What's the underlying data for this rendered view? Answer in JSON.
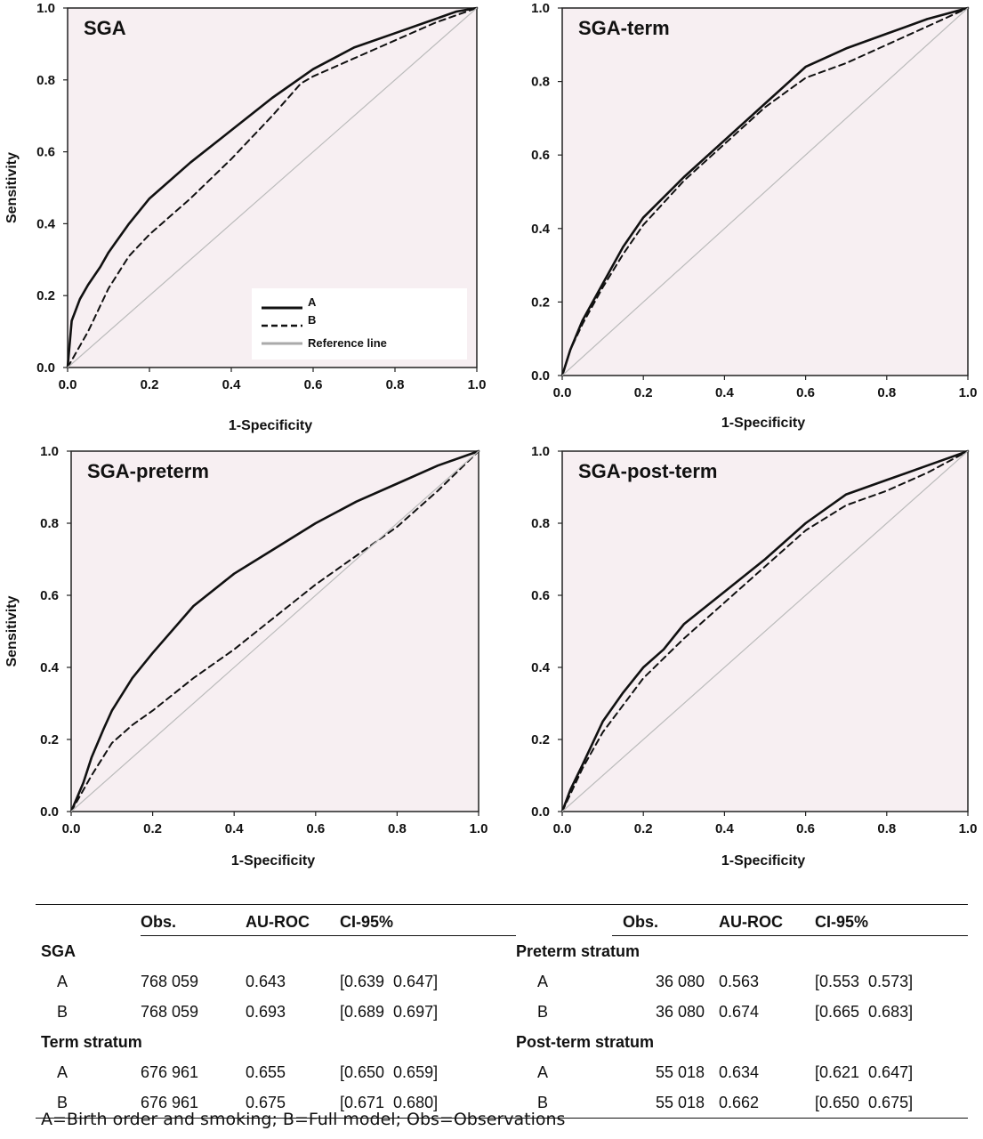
{
  "panels": [
    {
      "title": "SGA",
      "xlabel": "1-Specificity",
      "ylabel": "Sensitivity",
      "legend": [
        {
          "label": "A",
          "style": "solid"
        },
        {
          "label": "B",
          "style": "dashed"
        },
        {
          "label": "Reference line",
          "style": "reference"
        }
      ]
    },
    {
      "title": "SGA-term",
      "xlabel": "1-Specificity",
      "ylabel": ""
    },
    {
      "title": "SGA-preterm",
      "xlabel": "1-Specificity",
      "ylabel": "Sensitivity"
    },
    {
      "title": "SGA-post-term",
      "xlabel": "1-Specificity",
      "ylabel": ""
    }
  ],
  "chart_data": [
    {
      "type": "line",
      "title": "SGA",
      "xlabel": "1-Specificity",
      "ylabel": "Sensitivity",
      "xlim": [
        0,
        1
      ],
      "ylim": [
        0,
        1
      ],
      "xticks": [
        "0.0",
        "0.2",
        "0.4",
        "0.6",
        "0.8",
        "1.0"
      ],
      "yticks": [
        "0.0",
        "0.2",
        "0.4",
        "0.6",
        "0.8",
        "1.0"
      ],
      "legend_position": "bottom-right",
      "series": [
        {
          "name": "A",
          "style": "solid",
          "x": [
            0,
            0.01,
            0.03,
            0.05,
            0.08,
            0.1,
            0.15,
            0.2,
            0.3,
            0.4,
            0.5,
            0.6,
            0.7,
            0.8,
            0.9,
            0.95,
            1.0
          ],
          "y": [
            0,
            0.13,
            0.19,
            0.23,
            0.28,
            0.32,
            0.4,
            0.47,
            0.57,
            0.66,
            0.75,
            0.83,
            0.89,
            0.93,
            0.97,
            0.99,
            1.0
          ]
        },
        {
          "name": "B",
          "style": "dashed",
          "x": [
            0,
            0.05,
            0.1,
            0.15,
            0.2,
            0.3,
            0.4,
            0.5,
            0.57,
            0.6,
            0.7,
            0.8,
            0.9,
            1.0
          ],
          "y": [
            0,
            0.1,
            0.22,
            0.31,
            0.37,
            0.47,
            0.58,
            0.7,
            0.79,
            0.81,
            0.86,
            0.91,
            0.96,
            1.0
          ]
        },
        {
          "name": "Reference line",
          "style": "reference",
          "x": [
            0,
            1
          ],
          "y": [
            0,
            1
          ]
        }
      ]
    },
    {
      "type": "line",
      "title": "SGA-term",
      "xlabel": "1-Specificity",
      "ylabel": "",
      "xlim": [
        0,
        1
      ],
      "ylim": [
        0,
        1
      ],
      "xticks": [
        "0.0",
        "0.2",
        "0.4",
        "0.6",
        "0.8",
        "1.0"
      ],
      "yticks": [
        "0.0",
        "0.2",
        "0.4",
        "0.6",
        "0.8",
        "1.0"
      ],
      "series": [
        {
          "name": "A",
          "style": "solid",
          "x": [
            0,
            0.02,
            0.05,
            0.1,
            0.15,
            0.2,
            0.3,
            0.4,
            0.5,
            0.6,
            0.7,
            0.8,
            0.9,
            1.0
          ],
          "y": [
            0,
            0.07,
            0.15,
            0.25,
            0.35,
            0.43,
            0.54,
            0.64,
            0.74,
            0.84,
            0.89,
            0.93,
            0.97,
            1.0
          ]
        },
        {
          "name": "B",
          "style": "dashed",
          "x": [
            0,
            0.02,
            0.05,
            0.1,
            0.15,
            0.2,
            0.3,
            0.4,
            0.5,
            0.6,
            0.7,
            0.8,
            0.9,
            1.0
          ],
          "y": [
            0,
            0.07,
            0.14,
            0.24,
            0.33,
            0.41,
            0.53,
            0.63,
            0.73,
            0.81,
            0.85,
            0.9,
            0.95,
            1.0
          ]
        },
        {
          "name": "Reference line",
          "style": "reference",
          "x": [
            0,
            1
          ],
          "y": [
            0,
            1
          ]
        }
      ]
    },
    {
      "type": "line",
      "title": "SGA-preterm",
      "xlabel": "1-Specificity",
      "ylabel": "Sensitivity",
      "xlim": [
        0,
        1
      ],
      "ylim": [
        0,
        1
      ],
      "xticks": [
        "0.0",
        "0.2",
        "0.4",
        "0.6",
        "0.8",
        "1.0"
      ],
      "yticks": [
        "0.0",
        "0.2",
        "0.4",
        "0.6",
        "0.8",
        "1.0"
      ],
      "series": [
        {
          "name": "A",
          "style": "solid",
          "x": [
            0,
            0.03,
            0.05,
            0.08,
            0.1,
            0.15,
            0.2,
            0.3,
            0.4,
            0.5,
            0.6,
            0.7,
            0.8,
            0.9,
            1.0
          ],
          "y": [
            0,
            0.08,
            0.15,
            0.23,
            0.28,
            0.37,
            0.44,
            0.57,
            0.66,
            0.73,
            0.8,
            0.86,
            0.91,
            0.96,
            1.0
          ]
        },
        {
          "name": "B",
          "style": "dashed",
          "x": [
            0,
            0.05,
            0.1,
            0.15,
            0.2,
            0.3,
            0.4,
            0.5,
            0.6,
            0.7,
            0.8,
            0.9,
            1.0
          ],
          "y": [
            0,
            0.1,
            0.19,
            0.24,
            0.28,
            0.37,
            0.45,
            0.54,
            0.63,
            0.71,
            0.79,
            0.89,
            1.0
          ]
        },
        {
          "name": "Reference line",
          "style": "reference",
          "x": [
            0,
            1
          ],
          "y": [
            0,
            1
          ]
        }
      ]
    },
    {
      "type": "line",
      "title": "SGA-post-term",
      "xlabel": "1-Specificity",
      "ylabel": "",
      "xlim": [
        0,
        1
      ],
      "ylim": [
        0,
        1
      ],
      "xticks": [
        "0.0",
        "0.2",
        "0.4",
        "0.6",
        "0.8",
        "1.0"
      ],
      "yticks": [
        "0.0",
        "0.2",
        "0.4",
        "0.6",
        "0.8",
        "1.0"
      ],
      "series": [
        {
          "name": "A",
          "style": "solid",
          "x": [
            0,
            0.02,
            0.05,
            0.1,
            0.15,
            0.2,
            0.25,
            0.3,
            0.4,
            0.5,
            0.6,
            0.7,
            0.8,
            0.9,
            1.0
          ],
          "y": [
            0,
            0.06,
            0.13,
            0.25,
            0.33,
            0.4,
            0.45,
            0.52,
            0.61,
            0.7,
            0.8,
            0.88,
            0.92,
            0.96,
            1.0
          ]
        },
        {
          "name": "B",
          "style": "dashed",
          "x": [
            0,
            0.05,
            0.1,
            0.2,
            0.3,
            0.4,
            0.5,
            0.6,
            0.7,
            0.8,
            0.9,
            1.0
          ],
          "y": [
            0,
            0.12,
            0.22,
            0.37,
            0.48,
            0.58,
            0.68,
            0.78,
            0.85,
            0.89,
            0.94,
            1.0
          ]
        },
        {
          "name": "Reference line",
          "style": "reference",
          "x": [
            0,
            1
          ],
          "y": [
            0,
            1
          ]
        }
      ]
    }
  ],
  "table": {
    "headers": {
      "obs": "Obs.",
      "auroc": "AU-ROC",
      "ci": "CI-95%"
    },
    "sga": {
      "label": "SGA",
      "rows": [
        {
          "model": "A",
          "obs": "768 059",
          "auroc": "0.643",
          "ci": "[0.639  0.647]"
        },
        {
          "model": "B",
          "obs": "768 059",
          "auroc": "0.693",
          "ci": "[0.689  0.697]"
        }
      ]
    },
    "term": {
      "label": "Term stratum",
      "rows": [
        {
          "model": "A",
          "obs": "676 961",
          "auroc": "0.655",
          "ci": "[0.650  0.659]"
        },
        {
          "model": "B",
          "obs": "676 961",
          "auroc": "0.675",
          "ci": "[0.671  0.680]"
        }
      ]
    },
    "preterm": {
      "label": "Preterm stratum",
      "rows": [
        {
          "model": "A",
          "obs": "36 080",
          "auroc": "0.563",
          "ci": "[0.553  0.573]"
        },
        {
          "model": "B",
          "obs": "36 080",
          "auroc": "0.674",
          "ci": "[0.665  0.683]"
        }
      ]
    },
    "postterm": {
      "label": "Post-term stratum",
      "rows": [
        {
          "model": "A",
          "obs": "55 018",
          "auroc": "0.634",
          "ci": "[0.621  0.647]"
        },
        {
          "model": "B",
          "obs": "55 018",
          "auroc": "0.662",
          "ci": "[0.650  0.675]"
        }
      ]
    }
  },
  "footnote": "A=Birth order and smoking; B=Full model; Obs=Observations",
  "colors": {
    "plot_bg": "#f7eff2",
    "curve": "#111111",
    "reference": "#bbbbbb",
    "frame": "#222222"
  }
}
